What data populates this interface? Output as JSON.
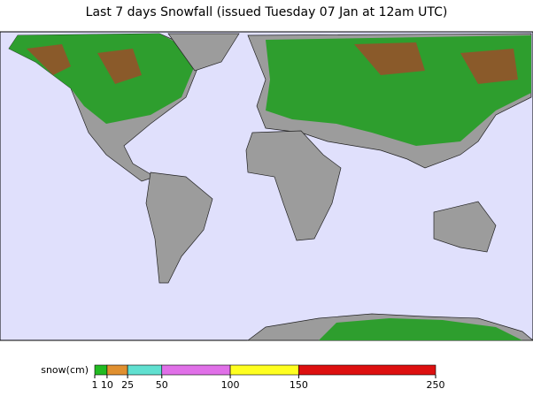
{
  "title": "Last 7 days Snowfall (issued Tuesday 07 Jan at 12am UTC)",
  "legend": {
    "label": "snow(cm)",
    "stops": [
      1,
      10,
      25,
      50,
      100,
      150,
      250
    ],
    "colors": [
      "#22bb22",
      "#e09030",
      "#60e0d0",
      "#e070e8",
      "#ffff20",
      "#dd1010"
    ]
  }
}
